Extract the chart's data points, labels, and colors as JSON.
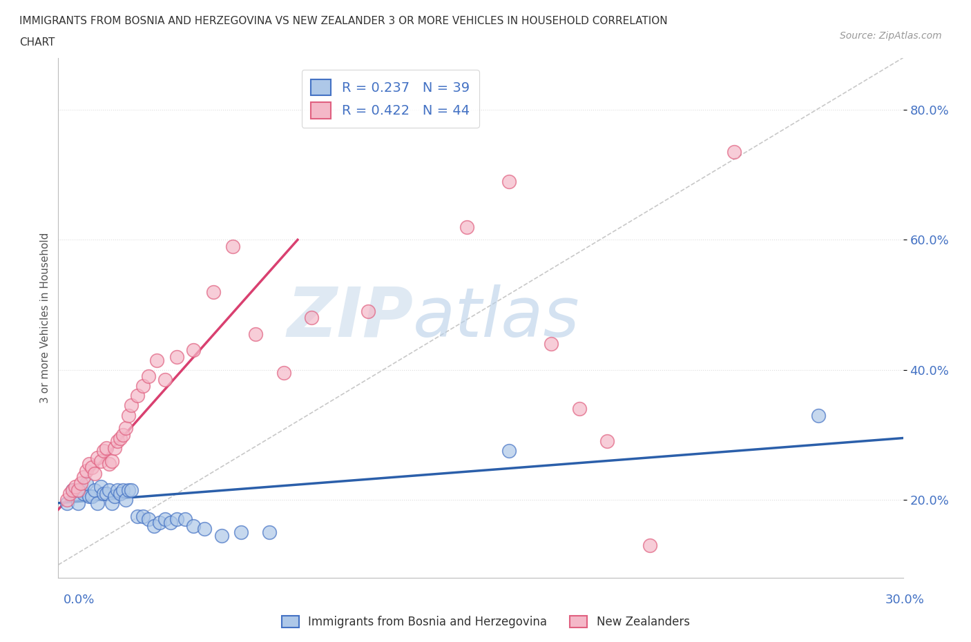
{
  "title_line1": "IMMIGRANTS FROM BOSNIA AND HERZEGOVINA VS NEW ZEALANDER 3 OR MORE VEHICLES IN HOUSEHOLD CORRELATION",
  "title_line2": "CHART",
  "source": "Source: ZipAtlas.com",
  "ylabel_label": "3 or more Vehicles in Household",
  "xmin": 0.0,
  "xmax": 0.3,
  "ymin": 0.08,
  "ymax": 0.88,
  "legend_blue_R": "R = 0.237",
  "legend_blue_N": "N = 39",
  "legend_pink_R": "R = 0.422",
  "legend_pink_N": "N = 44",
  "blue_color": "#aec8e8",
  "pink_color": "#f4b8c8",
  "blue_edge_color": "#4472c4",
  "pink_edge_color": "#e06080",
  "blue_line_color": "#2b5faa",
  "pink_line_color": "#d94070",
  "diag_line_color": "#c8c8c8",
  "watermark_zip": "ZIP",
  "watermark_atlas": "atlas",
  "blue_scatter_x": [
    0.003,
    0.005,
    0.006,
    0.007,
    0.008,
    0.009,
    0.01,
    0.011,
    0.012,
    0.013,
    0.014,
    0.015,
    0.016,
    0.017,
    0.018,
    0.019,
    0.02,
    0.021,
    0.022,
    0.023,
    0.024,
    0.025,
    0.026,
    0.028,
    0.03,
    0.032,
    0.034,
    0.036,
    0.038,
    0.04,
    0.042,
    0.045,
    0.048,
    0.052,
    0.058,
    0.065,
    0.075,
    0.16,
    0.27
  ],
  "blue_scatter_y": [
    0.195,
    0.215,
    0.21,
    0.195,
    0.215,
    0.21,
    0.225,
    0.205,
    0.205,
    0.215,
    0.195,
    0.22,
    0.21,
    0.21,
    0.215,
    0.195,
    0.205,
    0.215,
    0.21,
    0.215,
    0.2,
    0.215,
    0.215,
    0.175,
    0.175,
    0.17,
    0.16,
    0.165,
    0.17,
    0.165,
    0.17,
    0.17,
    0.16,
    0.155,
    0.145,
    0.15,
    0.15,
    0.275,
    0.33
  ],
  "pink_scatter_x": [
    0.003,
    0.004,
    0.005,
    0.006,
    0.007,
    0.008,
    0.009,
    0.01,
    0.011,
    0.012,
    0.013,
    0.014,
    0.015,
    0.016,
    0.017,
    0.018,
    0.019,
    0.02,
    0.021,
    0.022,
    0.023,
    0.024,
    0.025,
    0.026,
    0.028,
    0.03,
    0.032,
    0.035,
    0.038,
    0.042,
    0.048,
    0.055,
    0.062,
    0.07,
    0.08,
    0.09,
    0.11,
    0.145,
    0.16,
    0.175,
    0.185,
    0.195,
    0.21,
    0.24
  ],
  "pink_scatter_y": [
    0.2,
    0.21,
    0.215,
    0.22,
    0.215,
    0.225,
    0.235,
    0.245,
    0.255,
    0.25,
    0.24,
    0.265,
    0.26,
    0.275,
    0.28,
    0.255,
    0.26,
    0.28,
    0.29,
    0.295,
    0.3,
    0.31,
    0.33,
    0.345,
    0.36,
    0.375,
    0.39,
    0.415,
    0.385,
    0.42,
    0.43,
    0.52,
    0.59,
    0.455,
    0.395,
    0.48,
    0.49,
    0.62,
    0.69,
    0.44,
    0.34,
    0.29,
    0.13,
    0.735
  ],
  "blue_line_x": [
    0.0,
    0.3
  ],
  "blue_line_y": [
    0.195,
    0.295
  ],
  "pink_line_x": [
    0.0,
    0.085
  ],
  "pink_line_y": [
    0.185,
    0.6
  ],
  "diag_line_x": [
    0.0,
    0.3
  ],
  "diag_line_y": [
    0.1,
    0.88
  ],
  "bg_color": "#ffffff",
  "grid_color": "#dddddd",
  "ytick_positions": [
    0.2,
    0.4,
    0.6,
    0.8
  ],
  "ytick_labels": [
    "20.0%",
    "40.0%",
    "60.0%",
    "80.0%"
  ]
}
